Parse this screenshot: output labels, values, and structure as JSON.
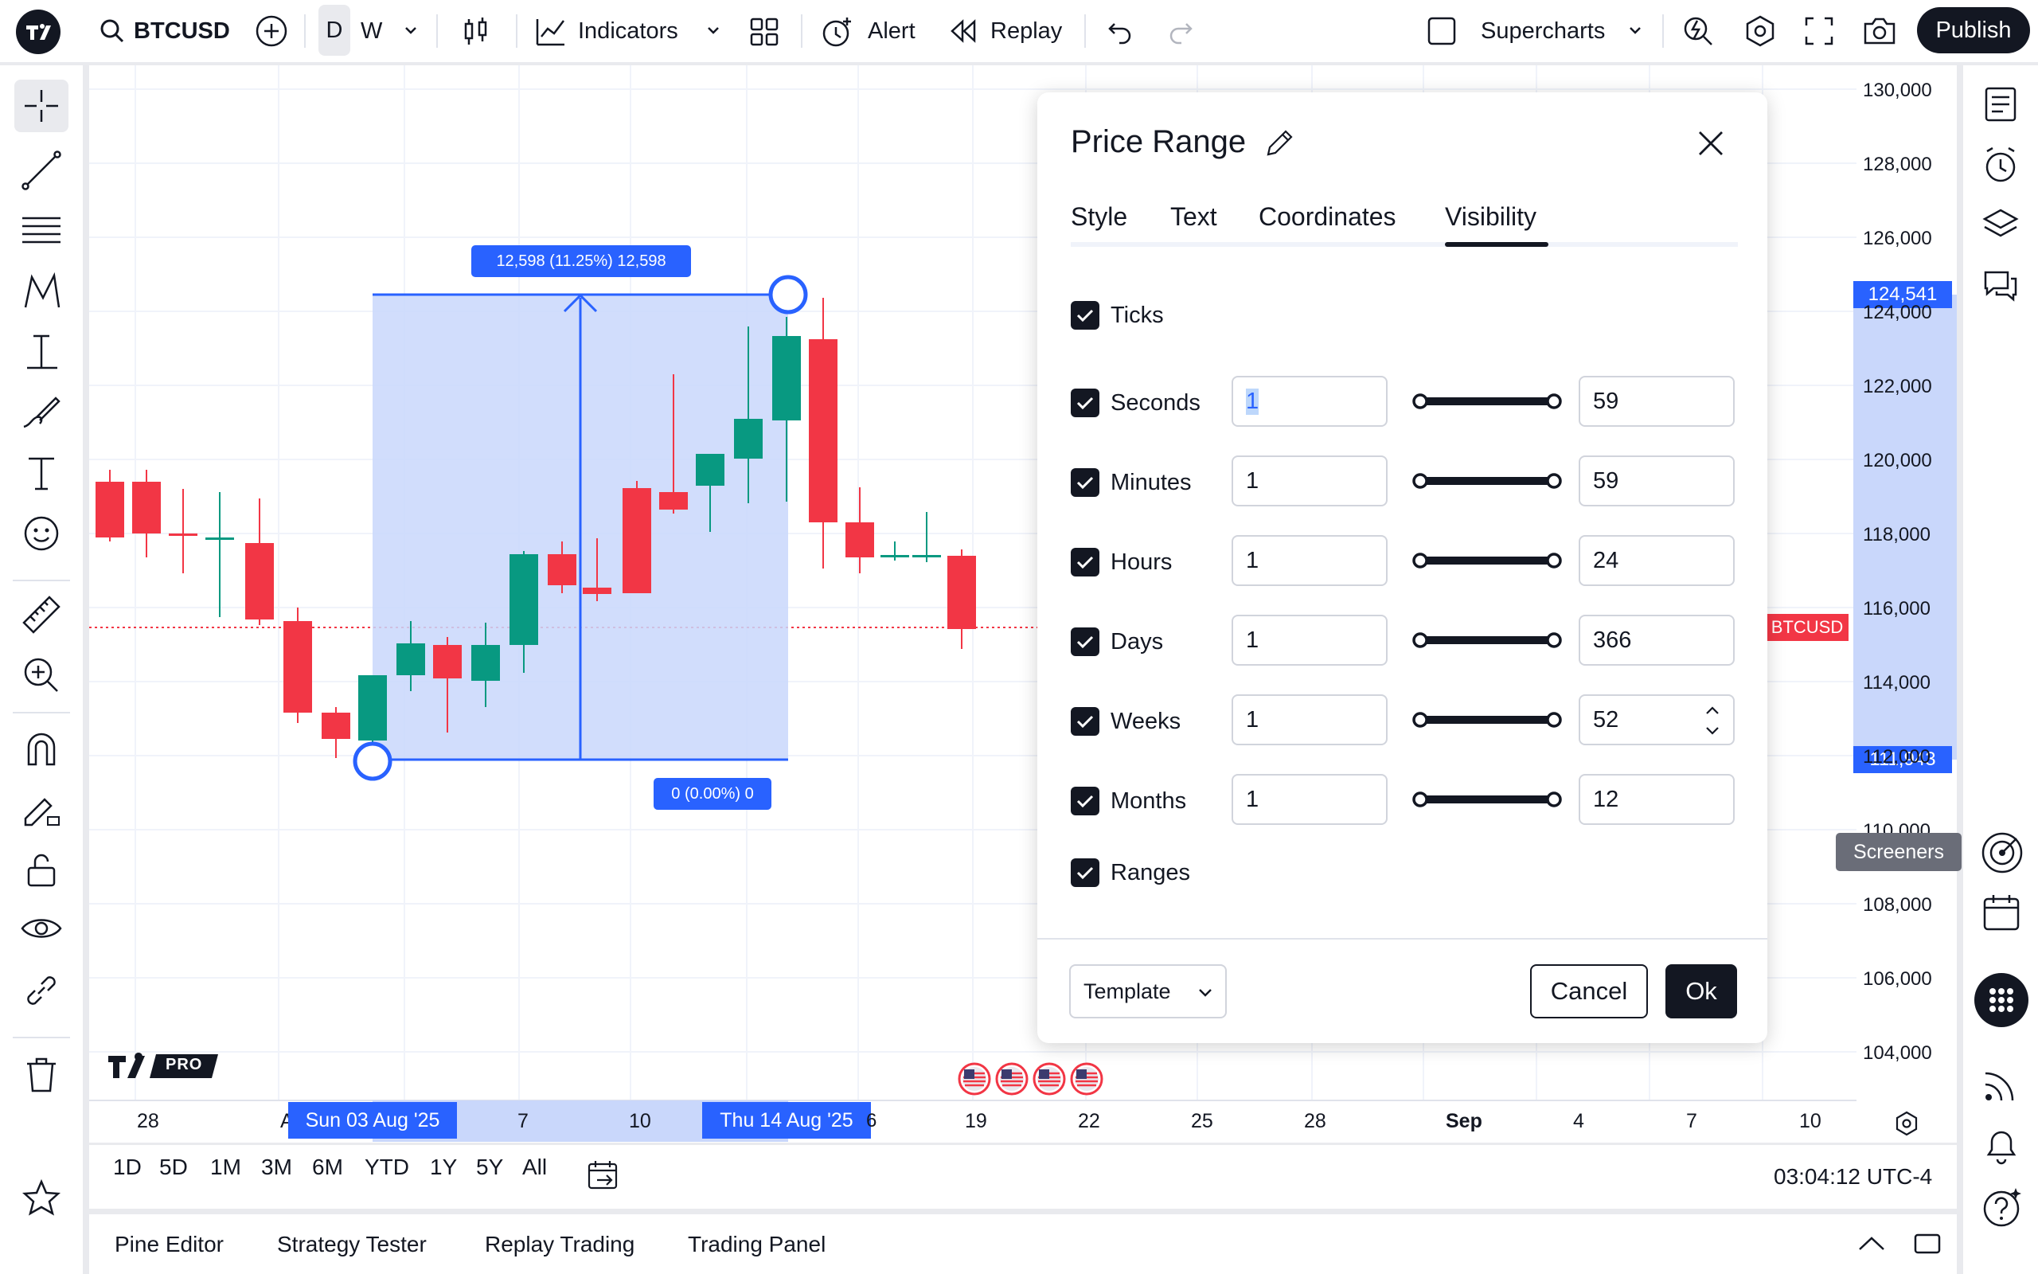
{
  "topbar": {
    "symbol": "BTCUSD",
    "interval_d": "D",
    "interval_w": "W",
    "indicators": "Indicators",
    "alert": "Alert",
    "replay": "Replay",
    "supercharts": "Supercharts",
    "publish": "Publish"
  },
  "chart": {
    "measure_top": "12,598 (11.25%) 12,598",
    "measure_bottom": "0 (0.00%) 0",
    "symbol_tag": "BTCUSD",
    "price_high_tag": "124,541",
    "price_low_tag": "111,943",
    "screeners_tooltip": "Screeners",
    "logo_pro": "PRO",
    "price_ticks": [
      "130,000",
      "128,000",
      "126,000",
      "124,000",
      "122,000",
      "120,000",
      "118,000",
      "116,000",
      "114,000",
      "112,000",
      "110,000",
      "108,000",
      "106,000",
      "104,000"
    ],
    "date_ticks": [
      "28",
      "A",
      "7",
      "10",
      "19",
      "22",
      "25",
      "28",
      "Sep",
      "4",
      "7",
      "10"
    ],
    "date_start_tag": "Sun 03 Aug '25",
    "date_end_tag": "Thu 14 Aug '25",
    "date_end_tail": "6"
  },
  "ranges": {
    "items": [
      "1D",
      "5D",
      "1M",
      "3M",
      "6M",
      "YTD",
      "1Y",
      "5Y",
      "All"
    ],
    "clock": "03:04:12 UTC-4"
  },
  "bottom_tabs": [
    "Pine Editor",
    "Strategy Tester",
    "Replay Trading",
    "Trading Panel"
  ],
  "dialog": {
    "title": "Price Range",
    "tabs": [
      "Style",
      "Text",
      "Coordinates",
      "Visibility"
    ],
    "active_tab": "Visibility",
    "ticks_label": "Ticks",
    "ranges_label": "Ranges",
    "rows": [
      {
        "label": "Seconds",
        "from": "1",
        "to": "59"
      },
      {
        "label": "Minutes",
        "from": "1",
        "to": "59"
      },
      {
        "label": "Hours",
        "from": "1",
        "to": "24"
      },
      {
        "label": "Days",
        "from": "1",
        "to": "366"
      },
      {
        "label": "Weeks",
        "from": "1",
        "to": "52"
      },
      {
        "label": "Months",
        "from": "1",
        "to": "12"
      }
    ],
    "template": "Template",
    "cancel": "Cancel",
    "ok": "Ok"
  },
  "colors": {
    "up": "#089981",
    "down": "#f23645",
    "accent": "#2962ff",
    "selection": "#c9d7fb"
  }
}
